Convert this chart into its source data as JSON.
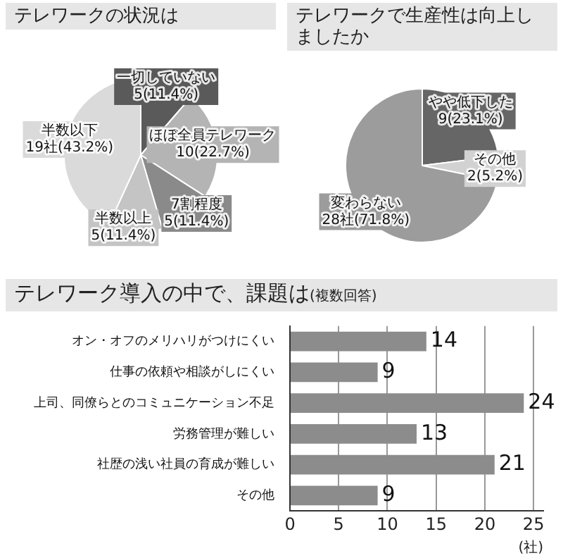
{
  "chart_data": [
    {
      "type": "pie",
      "title": "テレワークの状況は",
      "categories": [
        "一切していない",
        "ほぼ全員テレワーク",
        "7割程度",
        "半数以上",
        "半数以下"
      ],
      "values": [
        5,
        10,
        5,
        5,
        19
      ],
      "colors": [
        "#5a5a5a",
        "#b4b4b4",
        "#8a8a8a",
        "#c4c4c4",
        "#dadada"
      ],
      "value_labels": [
        "5(11.4%)",
        "10(22.7%)",
        "5(11.4%)",
        "5(11.4%)",
        "19社(43.2%)"
      ]
    },
    {
      "type": "pie",
      "title": "テレワークで生産性は向上しましたか",
      "categories": [
        "やや低下した",
        "その他",
        "変わらない"
      ],
      "values": [
        9,
        2,
        28
      ],
      "colors": [
        "#666666",
        "#d2d2d2",
        "#9c9c9c"
      ],
      "value_labels": [
        "9(23.1%)",
        "2(5.2%)",
        "28社(71.8%)"
      ]
    },
    {
      "type": "bar",
      "orientation": "horizontal",
      "title": "テレワーク導入の中で、課題は",
      "subtitle": "(複数回答)",
      "categories": [
        "オン・オフのメリハリがつけにくい",
        "仕事の依頼や相談がしにくい",
        "上司、同僚らとのコミュニケーション不足",
        "労務管理が難しい",
        "社歴の浅い社員の育成が難しい",
        "その他"
      ],
      "values": [
        14,
        9,
        24,
        13,
        21,
        9
      ],
      "color": "#8c8c8c",
      "xlim": [
        0,
        26
      ],
      "xticks": [
        0,
        5,
        10,
        15,
        20,
        25
      ],
      "xlabel": "(社)",
      "grid": "x",
      "data_labels": true
    }
  ]
}
